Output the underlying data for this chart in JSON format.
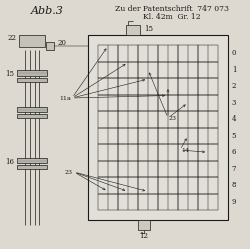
{
  "bg_color": "#ddd9d0",
  "paper_color": "#e8e5de",
  "dark": "#1a1a1a",
  "title_abb": "Abb.3",
  "title_patent": "Zu der Patentschrift  747 073",
  "title_class": "Kl. 42m  Gr. 12",
  "fig_width": 2.5,
  "fig_height": 2.49,
  "dpi": 100,
  "row_labels": [
    "0",
    "1",
    "2",
    "3",
    "4",
    "5",
    "6",
    "7",
    "8",
    "9"
  ],
  "label_22": "22",
  "label_20": "20",
  "label_15_top": "15",
  "label_15_left": "15",
  "label_16": "16",
  "label_11a": "11a",
  "label_12": "12",
  "label_23_left": "23",
  "label_23_right": "23",
  "label_14": "14"
}
